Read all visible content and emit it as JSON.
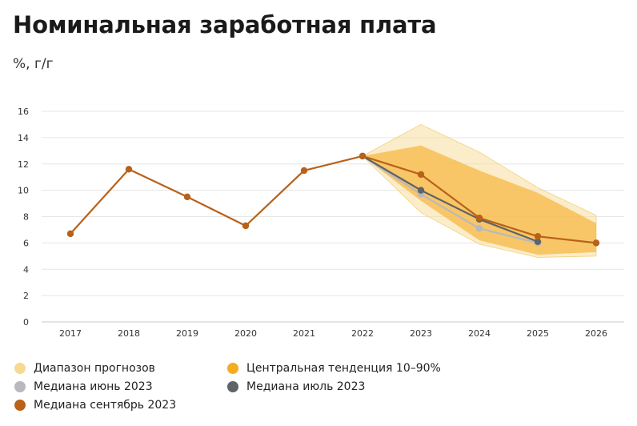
{
  "title": "Номинальная заработная плата",
  "subtitle": "%, г/г",
  "chart_data": {
    "type": "line",
    "x": [
      "2017",
      "2018",
      "2019",
      "2020",
      "2021",
      "2022",
      "2023",
      "2024",
      "2025",
      "2026"
    ],
    "ylim": [
      0,
      16
    ],
    "yticks": [
      "0",
      "2",
      "4",
      "6",
      "8",
      "10",
      "12",
      "14",
      "16"
    ],
    "grid": true,
    "legend_position": "bottom",
    "series": [
      {
        "name": "Медиана сентябрь 2023",
        "color": "#b86119",
        "values": [
          6.7,
          11.6,
          9.5,
          7.3,
          11.5,
          12.6,
          11.2,
          7.9,
          6.5,
          6.0
        ]
      },
      {
        "name": "Медиана июль 2023",
        "color": "#5f6368",
        "values": [
          null,
          null,
          null,
          null,
          null,
          12.6,
          10.0,
          7.8,
          6.1,
          null
        ]
      },
      {
        "name": "Медиана июнь 2023",
        "color": "#b7b9bf",
        "values": [
          null,
          null,
          null,
          null,
          null,
          12.6,
          9.7,
          7.1,
          6.0,
          null
        ]
      }
    ],
    "bands": [
      {
        "name": "Диапазон прогнозов",
        "color": "#f7dc9e",
        "opacity": 0.55,
        "x": [
          "2022",
          "2023",
          "2024",
          "2025",
          "2026"
        ],
        "upper": [
          12.6,
          15.0,
          12.9,
          10.2,
          8.1
        ],
        "lower": [
          12.6,
          8.3,
          5.9,
          4.9,
          5.0
        ]
      },
      {
        "name": "Центральная тенденция 10–90%",
        "color": "#f6b73c",
        "opacity": 0.7,
        "x": [
          "2022",
          "2023",
          "2024",
          "2025",
          "2026"
        ],
        "upper": [
          12.6,
          13.4,
          11.5,
          9.8,
          7.5
        ],
        "lower": [
          12.6,
          9.2,
          6.2,
          5.1,
          5.3
        ]
      }
    ]
  },
  "legend": [
    {
      "label": "Диапазон прогнозов",
      "color": "#f8d991"
    },
    {
      "label": "Центральная тенденция 10–90%",
      "color": "#f6ac1f"
    },
    {
      "label": "Медиана июнь 2023",
      "color": "#b7b9bf"
    },
    {
      "label": "Медиана июль 2023",
      "color": "#5f6368"
    },
    {
      "label": "Медиана сентябрь 2023",
      "color": "#b86119"
    }
  ]
}
